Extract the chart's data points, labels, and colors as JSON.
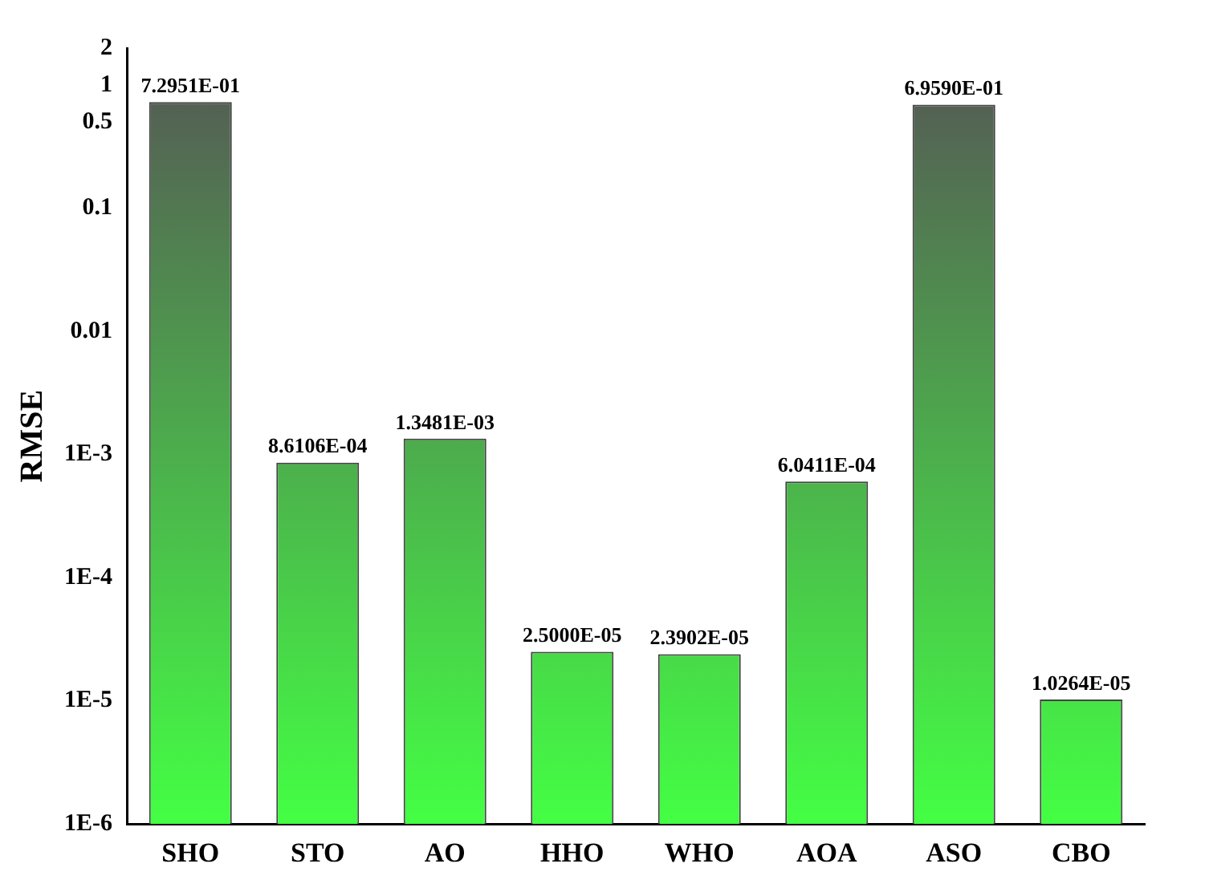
{
  "chart_data": {
    "type": "bar",
    "ylabel": "RMSE",
    "log": "y",
    "categories": [
      "SHO",
      "STO",
      "AO",
      "HHO",
      "WHO",
      "AOA",
      "ASO",
      "CBO"
    ],
    "values": [
      0.72951,
      0.00086106,
      0.0013481,
      2.5e-05,
      2.3902e-05,
      0.00060411,
      0.6959,
      1.0264e-05
    ],
    "value_labels": [
      "7.2951E-01",
      "8.6106E-04",
      "1.3481E-03",
      "2.5000E-05",
      "2.3902E-05",
      "6.0411E-04",
      "6.9590E-01",
      "1.0264E-05"
    ],
    "color": "#44ff44",
    "ylim": [
      1e-06,
      2
    ],
    "yticks": [
      {
        "value": 1e-06,
        "label": "1E-6"
      },
      {
        "value": 1e-05,
        "label": "1E-5"
      },
      {
        "value": 0.0001,
        "label": "1E-4"
      },
      {
        "value": 0.001,
        "label": "1E-3"
      },
      0.01,
      0.1,
      0.5,
      1,
      2
    ],
    "grid": false,
    "legend": false
  }
}
